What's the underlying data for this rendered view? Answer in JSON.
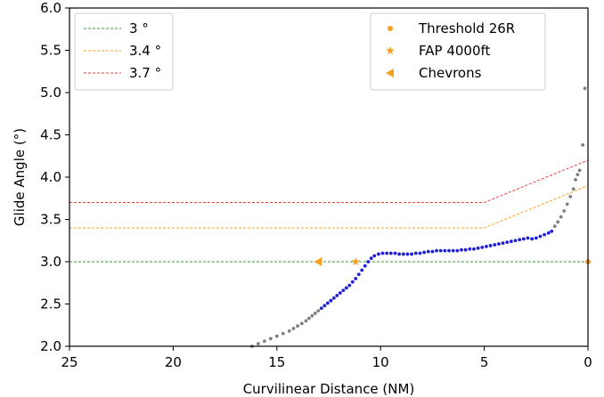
{
  "chart_data": {
    "type": "scatter",
    "title": "",
    "xlabel": "Curvilinear Distance (NM)",
    "ylabel": "Glide Angle (°)",
    "xlim": [
      25,
      0
    ],
    "ylim": [
      2.0,
      6.0
    ],
    "x_inverted": true,
    "xticks": [
      25,
      20,
      15,
      10,
      5,
      0
    ],
    "xtick_labels": [
      "25",
      "20",
      "15",
      "10",
      "5",
      "0"
    ],
    "yticks": [
      2.0,
      2.5,
      3.0,
      3.5,
      4.0,
      4.5,
      5.0,
      5.5,
      6.0
    ],
    "ytick_labels": [
      "2.0",
      "2.5",
      "3.0",
      "3.5",
      "4.0",
      "4.5",
      "5.0",
      "5.5",
      "6.0"
    ],
    "grid": false,
    "reference_lines": [
      {
        "name": "3 °",
        "color": "#2ca02c",
        "points": [
          [
            25,
            3.0
          ],
          [
            0,
            3.0
          ]
        ]
      },
      {
        "name": "3.4 °",
        "color": "#ff9f1c",
        "points": [
          [
            25,
            3.4
          ],
          [
            5,
            3.4
          ],
          [
            0,
            3.9
          ]
        ]
      },
      {
        "name": "3.7 °",
        "color": "#e8403a",
        "points": [
          [
            25,
            3.7
          ],
          [
            5,
            3.7
          ],
          [
            0,
            4.2
          ]
        ]
      }
    ],
    "markers": [
      {
        "name": "Threshold 26R",
        "shape": "circle",
        "color": "#f5a020",
        "x": 0.0,
        "y": 3.0
      },
      {
        "name": "FAP 4000ft",
        "shape": "star",
        "color": "#f5a020",
        "x": 11.2,
        "y": 3.0
      },
      {
        "name": "Chevrons",
        "shape": "triangle-left",
        "color": "#f5a020",
        "x": 13.0,
        "y": 3.0
      }
    ],
    "series": [
      {
        "color": "#7f7f7f",
        "points": [
          [
            16.2,
            2.0
          ],
          [
            15.9,
            2.03
          ],
          [
            15.6,
            2.06
          ],
          [
            15.3,
            2.09
          ],
          [
            15.0,
            2.12
          ],
          [
            14.7,
            2.15
          ],
          [
            14.4,
            2.18
          ],
          [
            14.2,
            2.21
          ],
          [
            14.0,
            2.24
          ],
          [
            13.8,
            2.27
          ],
          [
            13.6,
            2.3
          ],
          [
            13.45,
            2.33
          ],
          [
            13.3,
            2.36
          ],
          [
            13.15,
            2.39
          ],
          [
            13.0,
            2.42
          ]
        ]
      },
      {
        "color": "#1f1fd6",
        "points": [
          [
            12.85,
            2.45
          ],
          [
            12.7,
            2.48
          ],
          [
            12.55,
            2.51
          ],
          [
            12.4,
            2.54
          ],
          [
            12.25,
            2.57
          ],
          [
            12.1,
            2.6
          ],
          [
            11.95,
            2.63
          ],
          [
            11.8,
            2.66
          ],
          [
            11.65,
            2.69
          ],
          [
            11.5,
            2.72
          ],
          [
            11.35,
            2.76
          ],
          [
            11.2,
            2.8
          ],
          [
            11.05,
            2.85
          ],
          [
            10.9,
            2.9
          ],
          [
            10.75,
            2.95
          ],
          [
            10.6,
            3.0
          ],
          [
            10.45,
            3.04
          ],
          [
            10.3,
            3.07
          ],
          [
            10.1,
            3.09
          ],
          [
            9.9,
            3.1
          ],
          [
            9.7,
            3.1
          ],
          [
            9.5,
            3.1
          ],
          [
            9.3,
            3.1
          ],
          [
            9.1,
            3.09
          ],
          [
            8.9,
            3.09
          ],
          [
            8.7,
            3.09
          ],
          [
            8.5,
            3.09
          ],
          [
            8.3,
            3.1
          ],
          [
            8.1,
            3.1
          ],
          [
            7.9,
            3.11
          ],
          [
            7.7,
            3.12
          ],
          [
            7.5,
            3.12
          ],
          [
            7.3,
            3.13
          ],
          [
            7.1,
            3.13
          ],
          [
            6.9,
            3.13
          ],
          [
            6.7,
            3.13
          ],
          [
            6.5,
            3.13
          ],
          [
            6.3,
            3.13
          ],
          [
            6.1,
            3.14
          ],
          [
            5.9,
            3.14
          ],
          [
            5.7,
            3.15
          ],
          [
            5.5,
            3.15
          ],
          [
            5.3,
            3.16
          ],
          [
            5.1,
            3.17
          ],
          [
            4.9,
            3.18
          ],
          [
            4.7,
            3.19
          ],
          [
            4.5,
            3.2
          ],
          [
            4.3,
            3.21
          ],
          [
            4.1,
            3.22
          ],
          [
            3.9,
            3.23
          ],
          [
            3.7,
            3.24
          ],
          [
            3.5,
            3.25
          ],
          [
            3.3,
            3.26
          ],
          [
            3.1,
            3.27
          ],
          [
            2.9,
            3.28
          ],
          [
            2.7,
            3.27
          ],
          [
            2.5,
            3.28
          ],
          [
            2.3,
            3.3
          ],
          [
            2.1,
            3.32
          ],
          [
            1.9,
            3.34
          ],
          [
            1.75,
            3.36
          ]
        ]
      },
      {
        "color": "#7f7f7f",
        "points": [
          [
            1.6,
            3.42
          ],
          [
            1.45,
            3.47
          ],
          [
            1.3,
            3.53
          ],
          [
            1.15,
            3.6
          ],
          [
            1.0,
            3.68
          ],
          [
            0.85,
            3.77
          ],
          [
            0.7,
            3.86
          ],
          [
            0.6,
            3.97
          ],
          [
            0.5,
            4.03
          ],
          [
            0.4,
            4.08
          ],
          [
            0.25,
            4.38
          ],
          [
            0.15,
            5.05
          ]
        ]
      }
    ],
    "legends": [
      {
        "placement": "top-left",
        "entries": [
          "3 °",
          "3.4 °",
          "3.7 °"
        ]
      },
      {
        "placement": "top-right",
        "entries": [
          "Threshold 26R",
          "FAP 4000ft",
          "Chevrons"
        ]
      }
    ]
  }
}
